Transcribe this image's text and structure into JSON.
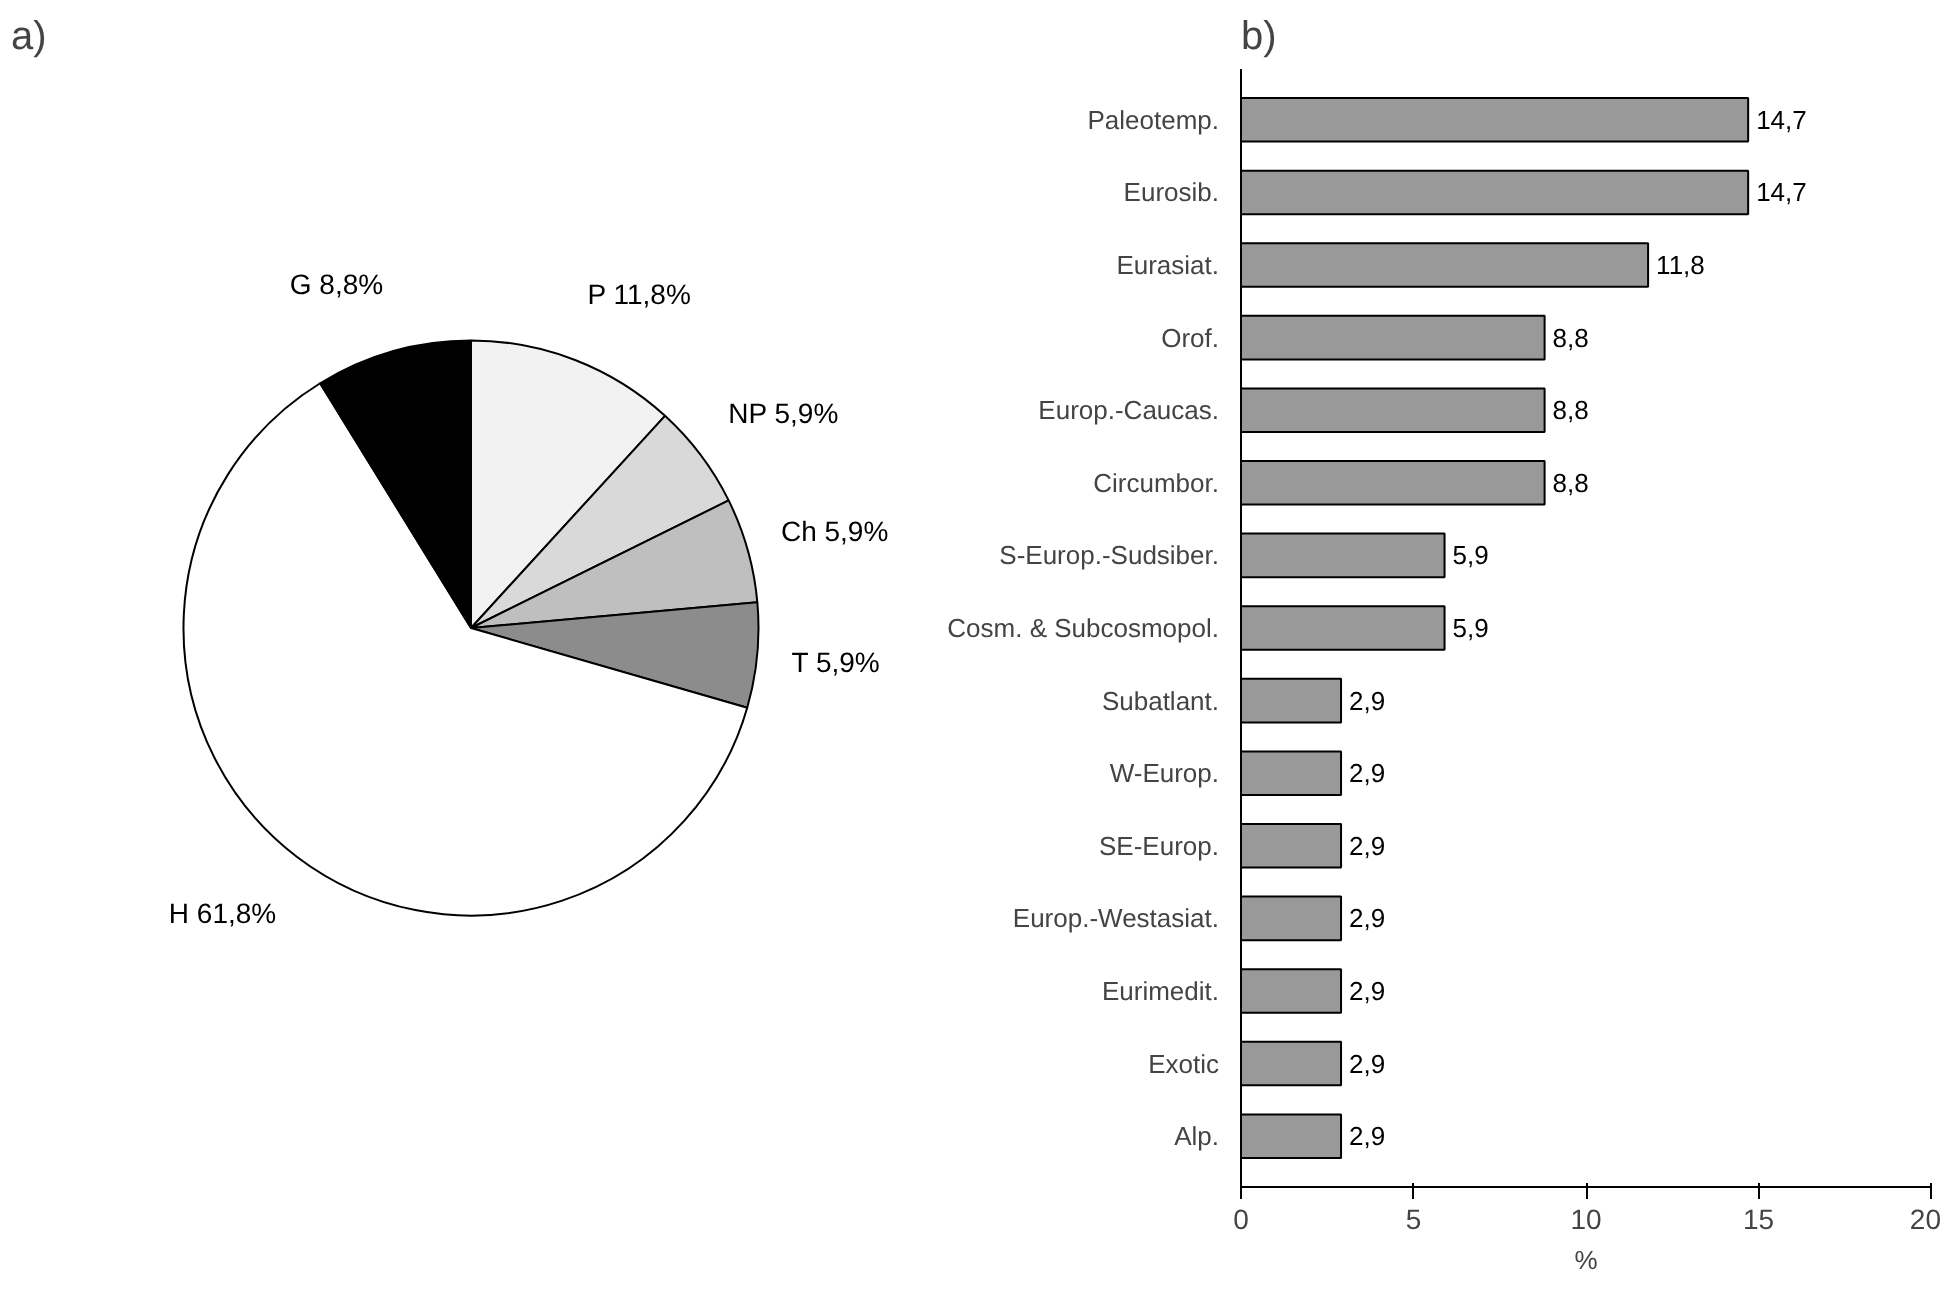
{
  "chart_data": [
    {
      "type": "pie",
      "title": "a)",
      "categories": [
        "P",
        "NP",
        "Ch",
        "T",
        "H",
        "G"
      ],
      "values": [
        11.8,
        5.9,
        5.9,
        5.9,
        61.8,
        8.8
      ],
      "value_labels": [
        "11,8%",
        "5,9%",
        "5,9%",
        "5,9%",
        "61,8%",
        "8,8%"
      ],
      "colors": [
        "#f2f2f2",
        "#d9d9d9",
        "#bfbfbf",
        "#8c8c8c",
        "#ffffff",
        "#000000"
      ]
    },
    {
      "type": "bar",
      "title": "b)",
      "orientation": "horizontal",
      "xlabel": "%",
      "categories": [
        "Paleotemp.",
        "Eurosib.",
        "Eurasiat.",
        "Orof.",
        "Europ.-Caucas.",
        "Circumbor.",
        "S-Europ.-Sudsiber.",
        "Cosm. & Subcosmopol.",
        "Subatlant.",
        "W-Europ.",
        "SE-Europ.",
        "Europ.-Westasiat.",
        "Eurimedit.",
        "Exotic",
        "Alp."
      ],
      "values": [
        14.7,
        14.7,
        11.8,
        8.8,
        8.8,
        8.8,
        5.9,
        5.9,
        2.9,
        2.9,
        2.9,
        2.9,
        2.9,
        2.9,
        2.9
      ],
      "value_labels": [
        "14,7",
        "14,7",
        "11,8",
        "8,8",
        "8,8",
        "8,8",
        "5,9",
        "5,9",
        "2,9",
        "2,9",
        "2,9",
        "2,9",
        "2,9",
        "2,9",
        "2,9"
      ],
      "color": "#999999",
      "xlim": [
        0,
        20
      ],
      "xticks": [
        0,
        5,
        10,
        15,
        20
      ],
      "grid": false
    }
  ]
}
